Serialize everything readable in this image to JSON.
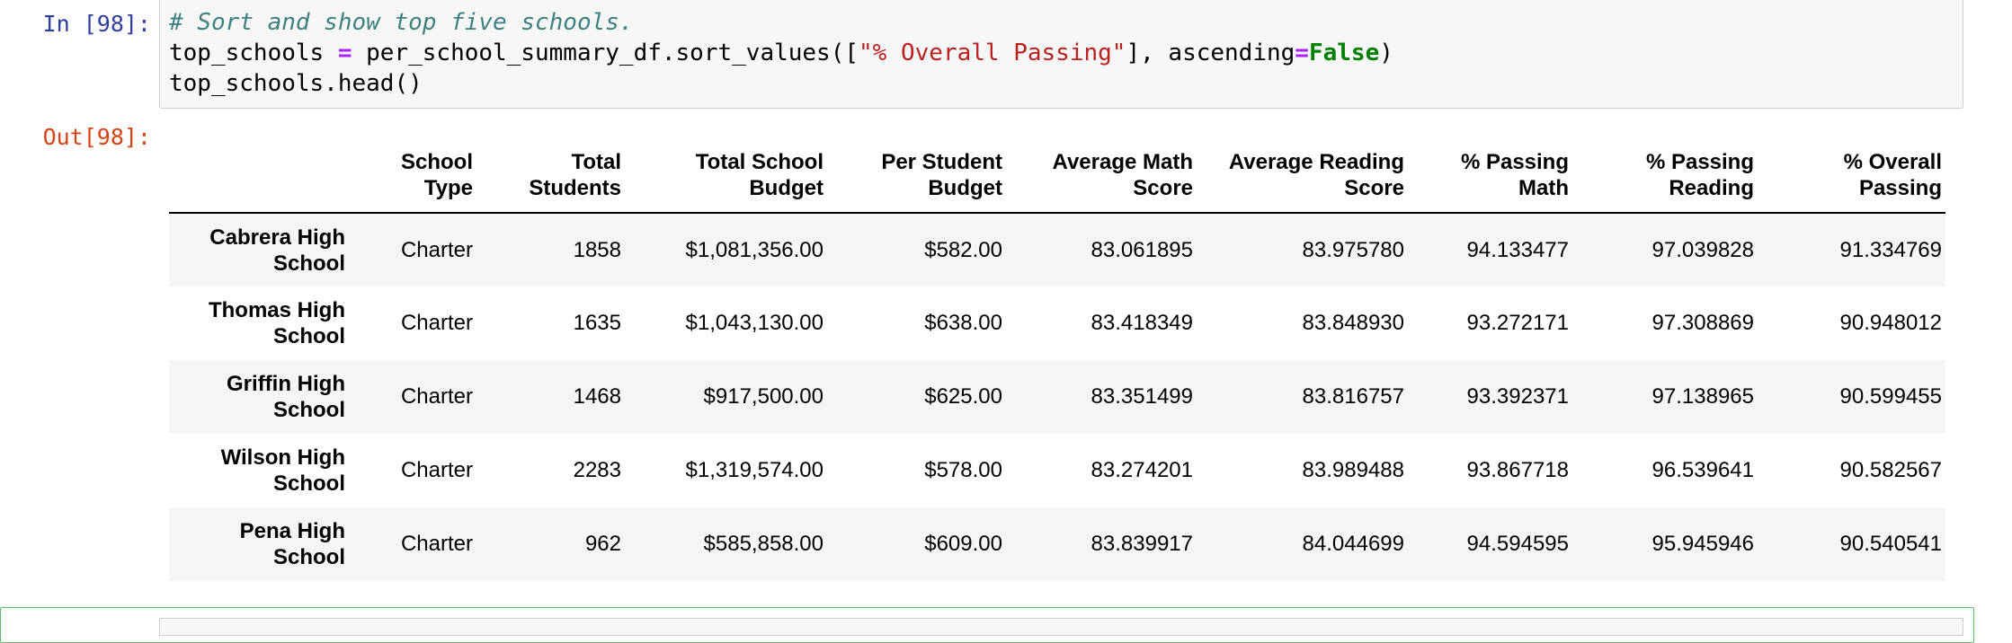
{
  "input_cell": {
    "prompt": "In [98]:",
    "line1_comment": "# Sort and show top five schools.",
    "line2_a": "top_schools ",
    "line2_eq1": "=",
    "line2_b": " per_school_summary_df.sort_values([",
    "line2_str": "\"% Overall Passing\"",
    "line2_c": "], ascending",
    "line2_eq2": "=",
    "line2_kw": "False",
    "line2_d": ")",
    "line3": "top_schools.head()"
  },
  "output_cell": {
    "prompt": "Out[98]:",
    "columns": [
      [
        "School",
        "Type"
      ],
      [
        "Total",
        "Students"
      ],
      [
        "Total School",
        "Budget"
      ],
      [
        "Per Student",
        "Budget"
      ],
      [
        "Average Math",
        "Score"
      ],
      [
        "Average Reading",
        "Score"
      ],
      [
        "% Passing",
        "Math"
      ],
      [
        "% Passing",
        "Reading"
      ],
      [
        "% Overall",
        "Passing"
      ]
    ],
    "rows": [
      {
        "index": [
          "Cabrera High",
          "School"
        ],
        "values": [
          "Charter",
          "1858",
          "$1,081,356.00",
          "$582.00",
          "83.061895",
          "83.975780",
          "94.133477",
          "97.039828",
          "91.334769"
        ]
      },
      {
        "index": [
          "Thomas High",
          "School"
        ],
        "values": [
          "Charter",
          "1635",
          "$1,043,130.00",
          "$638.00",
          "83.418349",
          "83.848930",
          "93.272171",
          "97.308869",
          "90.948012"
        ]
      },
      {
        "index": [
          "Griffin High",
          "School"
        ],
        "values": [
          "Charter",
          "1468",
          "$917,500.00",
          "$625.00",
          "83.351499",
          "83.816757",
          "93.392371",
          "97.138965",
          "90.599455"
        ]
      },
      {
        "index": [
          "Wilson High",
          "School"
        ],
        "values": [
          "Charter",
          "2283",
          "$1,319,574.00",
          "$578.00",
          "83.274201",
          "83.989488",
          "93.867718",
          "96.539641",
          "90.582567"
        ]
      },
      {
        "index": [
          "Pena High",
          "School"
        ],
        "values": [
          "Charter",
          "962",
          "$585,858.00",
          "$609.00",
          "83.839917",
          "84.044699",
          "94.594595",
          "95.945946",
          "90.540541"
        ]
      }
    ]
  }
}
